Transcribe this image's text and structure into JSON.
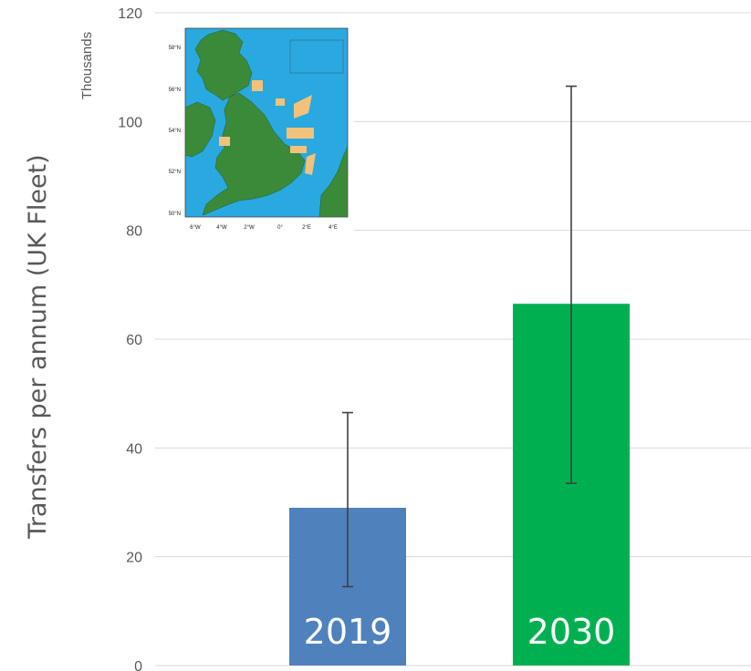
{
  "chart_data": {
    "type": "bar",
    "categories": [
      "2019",
      "2030"
    ],
    "values": [
      29,
      66.5
    ],
    "error_low": [
      14.5,
      33.5
    ],
    "error_high": [
      46.5,
      106.5
    ],
    "colors": [
      "#4f81bd",
      "#00b050"
    ],
    "ylabel": "Transfers per annum (UK Fleet)",
    "units_label": "Thousands",
    "ylim": [
      0,
      120
    ],
    "yticks": [
      "0",
      "20",
      "40",
      "60",
      "80",
      "100",
      "120"
    ],
    "grid": true,
    "inset": {
      "description": "UK map",
      "lat_ticks": [
        "58°N",
        "56°N",
        "54°N",
        "52°N",
        "50°N"
      ],
      "lon_ticks": [
        "6°W",
        "4°W",
        "2°W",
        "0°",
        "2°E",
        "4°E"
      ]
    }
  }
}
